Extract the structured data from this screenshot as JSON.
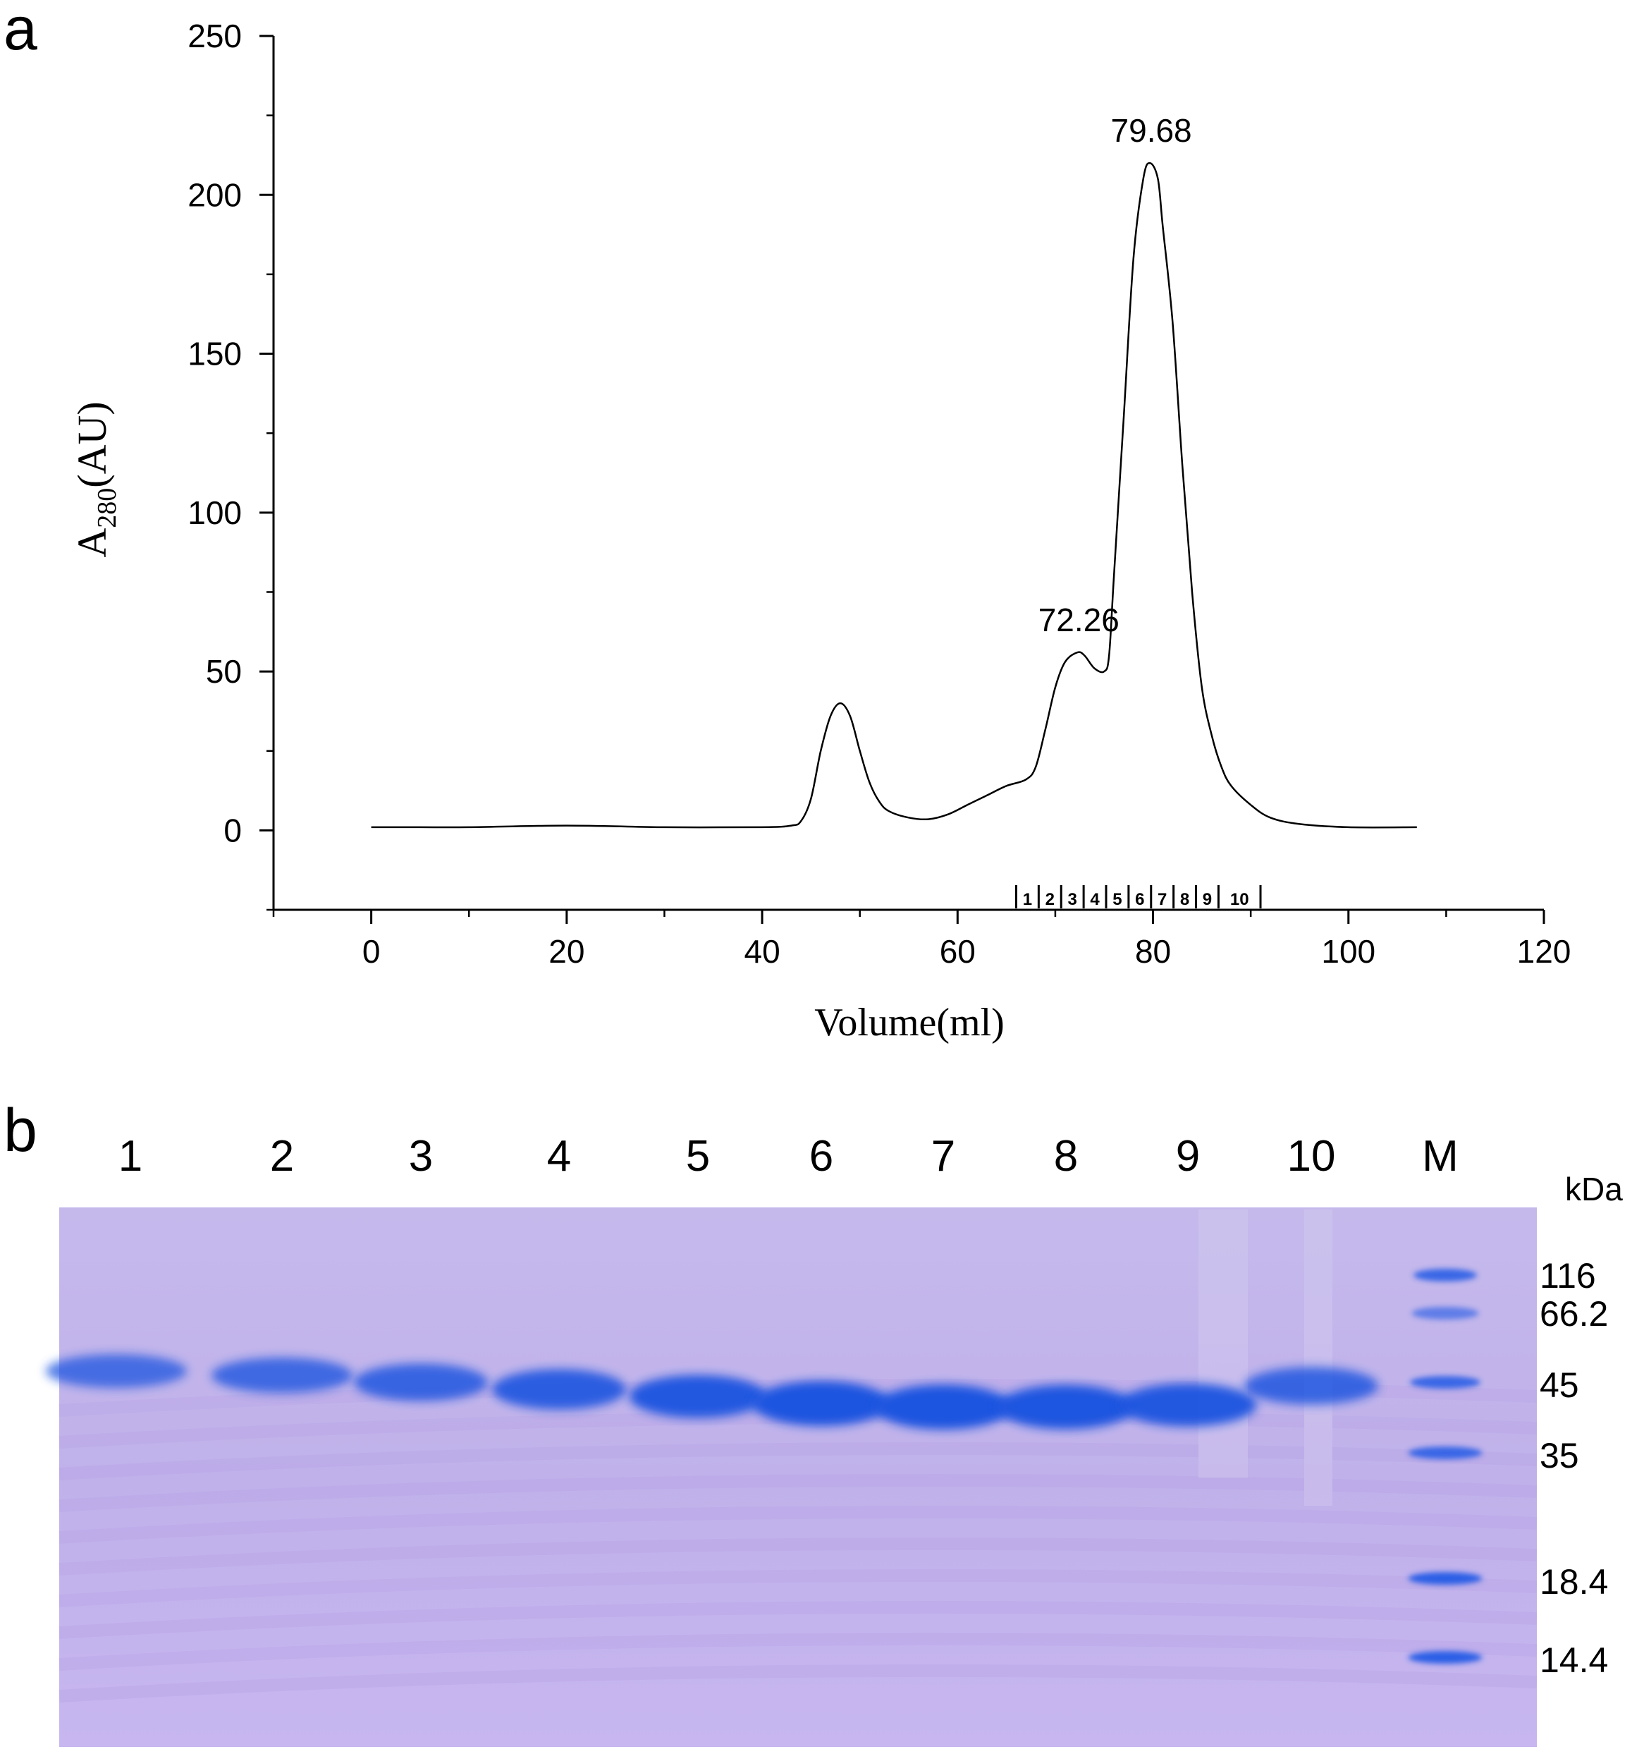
{
  "panel_a": {
    "label": "a",
    "x_axis_label": "Volume(ml)",
    "y_axis_label_main": "A",
    "y_axis_label_sub": "280",
    "y_axis_label_unit": "(AU)"
  },
  "panel_b": {
    "label": "b",
    "unit_label": "kDa",
    "lanes": [
      "1",
      "2",
      "3",
      "4",
      "5",
      "6",
      "7",
      "8",
      "9",
      "10",
      "M"
    ],
    "marker_weights": [
      "116",
      "66.2",
      "45",
      "35",
      "18.4",
      "14.4"
    ],
    "band_intensity": [
      0.55,
      0.62,
      0.7,
      0.82,
      0.92,
      1.0,
      1.0,
      0.98,
      0.92,
      0.7
    ],
    "colors": {
      "gel_background": "#c2b4ea",
      "band": "#1f55e0",
      "marker": "#2c5ee6"
    }
  },
  "chart_data": {
    "type": "line",
    "xlabel": "Volume(ml)",
    "ylabel": "A280(AU)",
    "xlim": [
      -10,
      120
    ],
    "ylim": [
      -25,
      250
    ],
    "x_ticks": [
      0,
      20,
      40,
      60,
      80,
      100,
      120
    ],
    "y_ticks": [
      0,
      50,
      100,
      150,
      200,
      250
    ],
    "grid": false,
    "series": [
      {
        "x": [
          0,
          5,
          10,
          20,
          30,
          40,
          43,
          44,
          45,
          46,
          47,
          48,
          49,
          50,
          51,
          52,
          53,
          55,
          57,
          59,
          61,
          63,
          65,
          67,
          68,
          69,
          70,
          71,
          72.26,
          73,
          74,
          75,
          75.5,
          76,
          77,
          78,
          79,
          79.68,
          80.5,
          81,
          82,
          83,
          84,
          85,
          86,
          87,
          88,
          90,
          92,
          95,
          100,
          107
        ],
        "y": [
          1,
          1,
          1,
          1.5,
          1,
          1,
          1.5,
          3,
          10,
          25,
          36,
          40,
          36,
          25,
          15,
          9,
          6,
          4,
          3.5,
          5,
          8,
          11,
          14,
          16,
          20,
          32,
          45,
          53,
          56,
          55,
          51,
          50,
          55,
          80,
          130,
          180,
          205,
          210,
          205,
          190,
          160,
          115,
          75,
          45,
          30,
          20,
          14,
          8,
          4,
          2,
          1,
          1
        ]
      }
    ],
    "annotations": [
      {
        "x": 72.26,
        "y": 56,
        "text": "72.26"
      },
      {
        "x": 79.68,
        "y": 210,
        "text": "79.68"
      }
    ],
    "fraction_labels": [
      "1",
      "2",
      "3",
      "4",
      "5",
      "6",
      "7",
      "8",
      "9",
      "10"
    ],
    "fraction_boundaries": [
      66,
      68.3,
      70.6,
      72.9,
      75.2,
      77.5,
      79.8,
      82.1,
      84.4,
      86.7,
      91
    ]
  }
}
